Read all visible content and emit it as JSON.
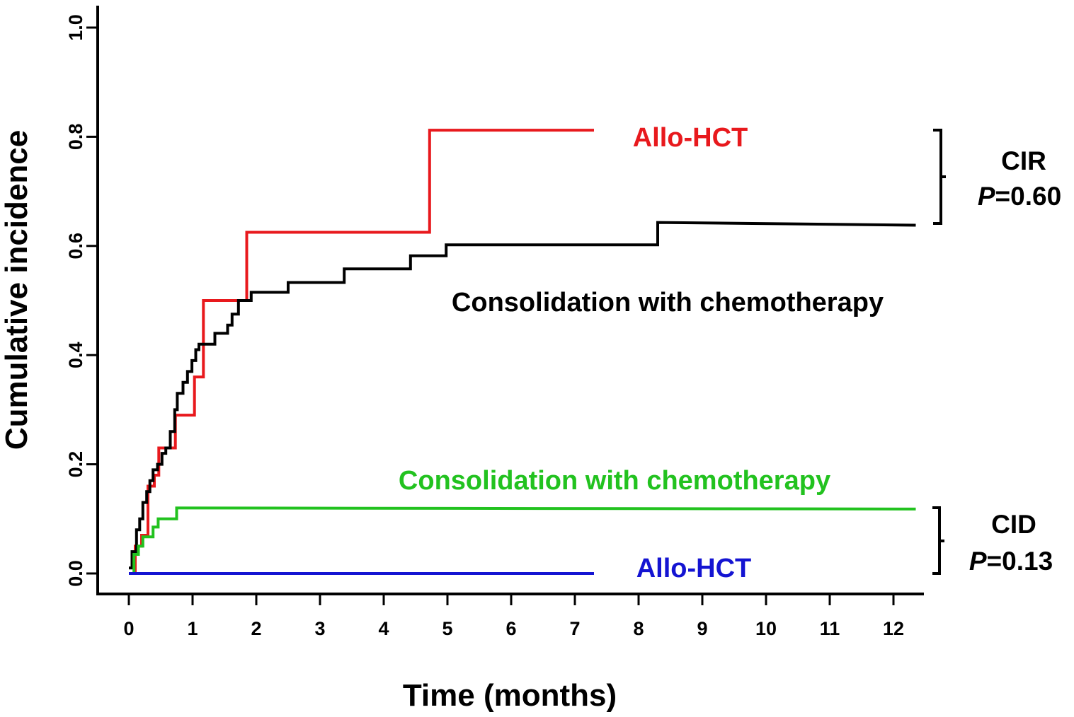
{
  "chart_data": {
    "type": "line",
    "step": true,
    "xlabel": "Time (months)",
    "ylabel": "Cumulative incidence",
    "xlim": [
      0,
      12.4
    ],
    "ylim": [
      0,
      1.0
    ],
    "x_ticks": [
      "0",
      "1",
      "2",
      "3",
      "4",
      "5",
      "6",
      "7",
      "8",
      "9",
      "10",
      "11",
      "12"
    ],
    "y_ticks": [
      "0.0",
      "0.2",
      "0.4",
      "0.6",
      "0.8",
      "1.0"
    ],
    "grid": false,
    "series": [
      {
        "name": "Allo-HCT",
        "group": "CIR",
        "color": "#e8191d",
        "points": [
          [
            0,
            0
          ],
          [
            0.1,
            0
          ],
          [
            0.1,
            0.05
          ],
          [
            0.2,
            0.05
          ],
          [
            0.2,
            0.07
          ],
          [
            0.3,
            0.07
          ],
          [
            0.3,
            0.16
          ],
          [
            0.4,
            0.16
          ],
          [
            0.4,
            0.18
          ],
          [
            0.47,
            0.18
          ],
          [
            0.47,
            0.23
          ],
          [
            0.73,
            0.23
          ],
          [
            0.73,
            0.29
          ],
          [
            1.03,
            0.29
          ],
          [
            1.03,
            0.36
          ],
          [
            1.17,
            0.36
          ],
          [
            1.17,
            0.5
          ],
          [
            1.85,
            0.5
          ],
          [
            1.85,
            0.625
          ],
          [
            4.72,
            0.625
          ],
          [
            4.72,
            0.812
          ],
          [
            7.3,
            0.812
          ]
        ]
      },
      {
        "name": "Consolidation with chemotherapy",
        "group": "CIR",
        "color": "#000000",
        "points": [
          [
            0,
            0.01
          ],
          [
            0.05,
            0.01
          ],
          [
            0.05,
            0.04
          ],
          [
            0.12,
            0.04
          ],
          [
            0.12,
            0.08
          ],
          [
            0.17,
            0.08
          ],
          [
            0.17,
            0.1
          ],
          [
            0.22,
            0.1
          ],
          [
            0.22,
            0.13
          ],
          [
            0.28,
            0.13
          ],
          [
            0.28,
            0.15
          ],
          [
            0.33,
            0.15
          ],
          [
            0.33,
            0.17
          ],
          [
            0.38,
            0.17
          ],
          [
            0.38,
            0.19
          ],
          [
            0.45,
            0.19
          ],
          [
            0.45,
            0.2
          ],
          [
            0.52,
            0.2
          ],
          [
            0.52,
            0.22
          ],
          [
            0.58,
            0.22
          ],
          [
            0.58,
            0.23
          ],
          [
            0.65,
            0.23
          ],
          [
            0.65,
            0.26
          ],
          [
            0.72,
            0.26
          ],
          [
            0.72,
            0.3
          ],
          [
            0.76,
            0.3
          ],
          [
            0.76,
            0.33
          ],
          [
            0.85,
            0.33
          ],
          [
            0.85,
            0.35
          ],
          [
            0.92,
            0.35
          ],
          [
            0.92,
            0.37
          ],
          [
            0.99,
            0.37
          ],
          [
            0.99,
            0.39
          ],
          [
            1.05,
            0.39
          ],
          [
            1.05,
            0.41
          ],
          [
            1.1,
            0.41
          ],
          [
            1.1,
            0.42
          ],
          [
            1.35,
            0.42
          ],
          [
            1.35,
            0.44
          ],
          [
            1.55,
            0.44
          ],
          [
            1.55,
            0.455
          ],
          [
            1.62,
            0.455
          ],
          [
            1.62,
            0.475
          ],
          [
            1.72,
            0.475
          ],
          [
            1.72,
            0.5
          ],
          [
            1.92,
            0.5
          ],
          [
            1.92,
            0.515
          ],
          [
            2.5,
            0.515
          ],
          [
            2.5,
            0.533
          ],
          [
            3.38,
            0.533
          ],
          [
            3.38,
            0.558
          ],
          [
            4.42,
            0.558
          ],
          [
            4.42,
            0.582
          ],
          [
            4.98,
            0.582
          ],
          [
            4.98,
            0.602
          ],
          [
            8.3,
            0.602
          ],
          [
            8.3,
            0.643
          ],
          [
            12.35,
            0.638
          ]
        ]
      },
      {
        "name": "Consolidation with chemotherapy",
        "group": "CID",
        "color": "#22c21f",
        "points": [
          [
            0,
            0
          ],
          [
            0.08,
            0
          ],
          [
            0.08,
            0.035
          ],
          [
            0.15,
            0.035
          ],
          [
            0.15,
            0.05
          ],
          [
            0.22,
            0.05
          ],
          [
            0.22,
            0.067
          ],
          [
            0.38,
            0.067
          ],
          [
            0.38,
            0.085
          ],
          [
            0.46,
            0.085
          ],
          [
            0.46,
            0.1
          ],
          [
            0.75,
            0.1
          ],
          [
            0.75,
            0.12
          ],
          [
            12.35,
            0.118
          ]
        ]
      },
      {
        "name": "Allo-HCT",
        "group": "CID",
        "color": "#1414d2",
        "points": [
          [
            0,
            0
          ],
          [
            7.3,
            0
          ]
        ]
      }
    ],
    "annotations": [
      {
        "name": "CIR",
        "p_label": "P",
        "p_value": "=0.60"
      },
      {
        "name": "CID",
        "p_label": "P",
        "p_value": "=0.13"
      }
    ]
  },
  "labels": {
    "allo_cir": "Allo-HCT",
    "chemo_cir": "Consolidation with chemotherapy",
    "chemo_cid": "Consolidation with chemotherapy",
    "allo_cid": "Allo-HCT",
    "cir_title": "CIR",
    "cir_p_label": "P",
    "cir_p_value": "=0.60",
    "cid_title": "CID",
    "cid_p_label": "P",
    "cid_p_value": "=0.13",
    "colors": {
      "allo_cir": "#e8191d",
      "chemo_cir": "#000000",
      "chemo_cid": "#22c21f",
      "allo_cid": "#1414d2"
    }
  }
}
